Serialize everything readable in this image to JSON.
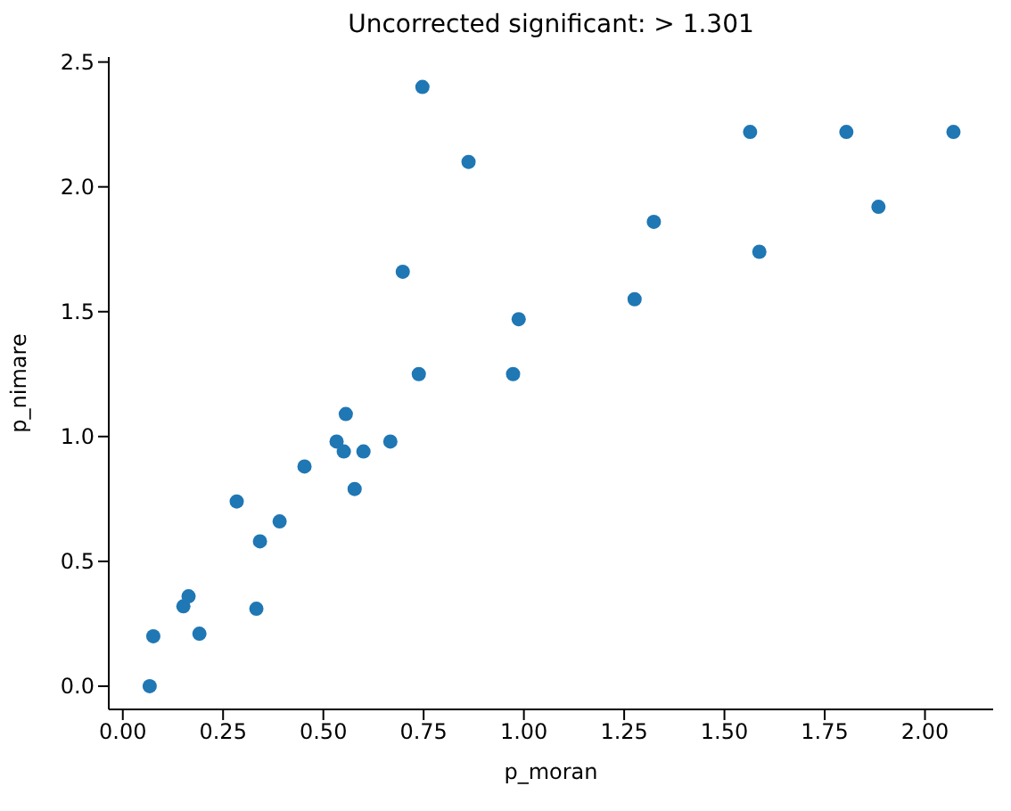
{
  "chart_data": {
    "type": "scatter",
    "title": "Uncorrected significant: > 1.301",
    "xlabel": "p_moran",
    "ylabel": "p_nimare",
    "marker": "circle",
    "grid": false,
    "x": [
      0.067,
      0.076,
      0.151,
      0.164,
      0.191,
      0.284,
      0.333,
      0.342,
      0.391,
      0.453,
      0.533,
      0.551,
      0.556,
      0.578,
      0.6,
      0.667,
      0.698,
      0.738,
      0.747,
      0.862,
      0.973,
      0.987,
      1.276,
      1.324,
      1.564,
      1.587,
      1.804,
      1.884,
      2.071
    ],
    "series": [
      {
        "color": "#1f77b4",
        "values": [
          0.0,
          0.2,
          0.32,
          0.36,
          0.21,
          0.74,
          0.31,
          0.58,
          0.66,
          0.88,
          0.98,
          0.94,
          1.09,
          0.79,
          0.94,
          0.98,
          1.66,
          1.25,
          2.4,
          2.1,
          1.25,
          1.47,
          1.55,
          1.86,
          2.22,
          1.74,
          2.22,
          1.92,
          2.22
        ]
      }
    ],
    "xlim": [
      -0.035,
      2.17
    ],
    "ylim": [
      -0.093,
      2.52
    ],
    "xticks": [
      {
        "value": 0,
        "label": "0.00"
      },
      {
        "value": 0.25,
        "label": "0.25"
      },
      {
        "value": 0.5,
        "label": "0.50"
      },
      {
        "value": 0.75,
        "label": "0.75"
      },
      {
        "value": 1,
        "label": "1.00"
      },
      {
        "value": 1.25,
        "label": "1.25"
      },
      {
        "value": 1.5,
        "label": "1.50"
      },
      {
        "value": 1.75,
        "label": "1.75"
      },
      {
        "value": 2,
        "label": "2.00"
      }
    ],
    "yticks": [
      {
        "value": 0,
        "label": "0.0"
      },
      {
        "value": 0.5,
        "label": "0.5"
      },
      {
        "value": 1,
        "label": "1.0"
      },
      {
        "value": 1.5,
        "label": "1.5"
      },
      {
        "value": 2,
        "label": "2.0"
      },
      {
        "value": 2.5,
        "label": "2.5"
      }
    ]
  }
}
